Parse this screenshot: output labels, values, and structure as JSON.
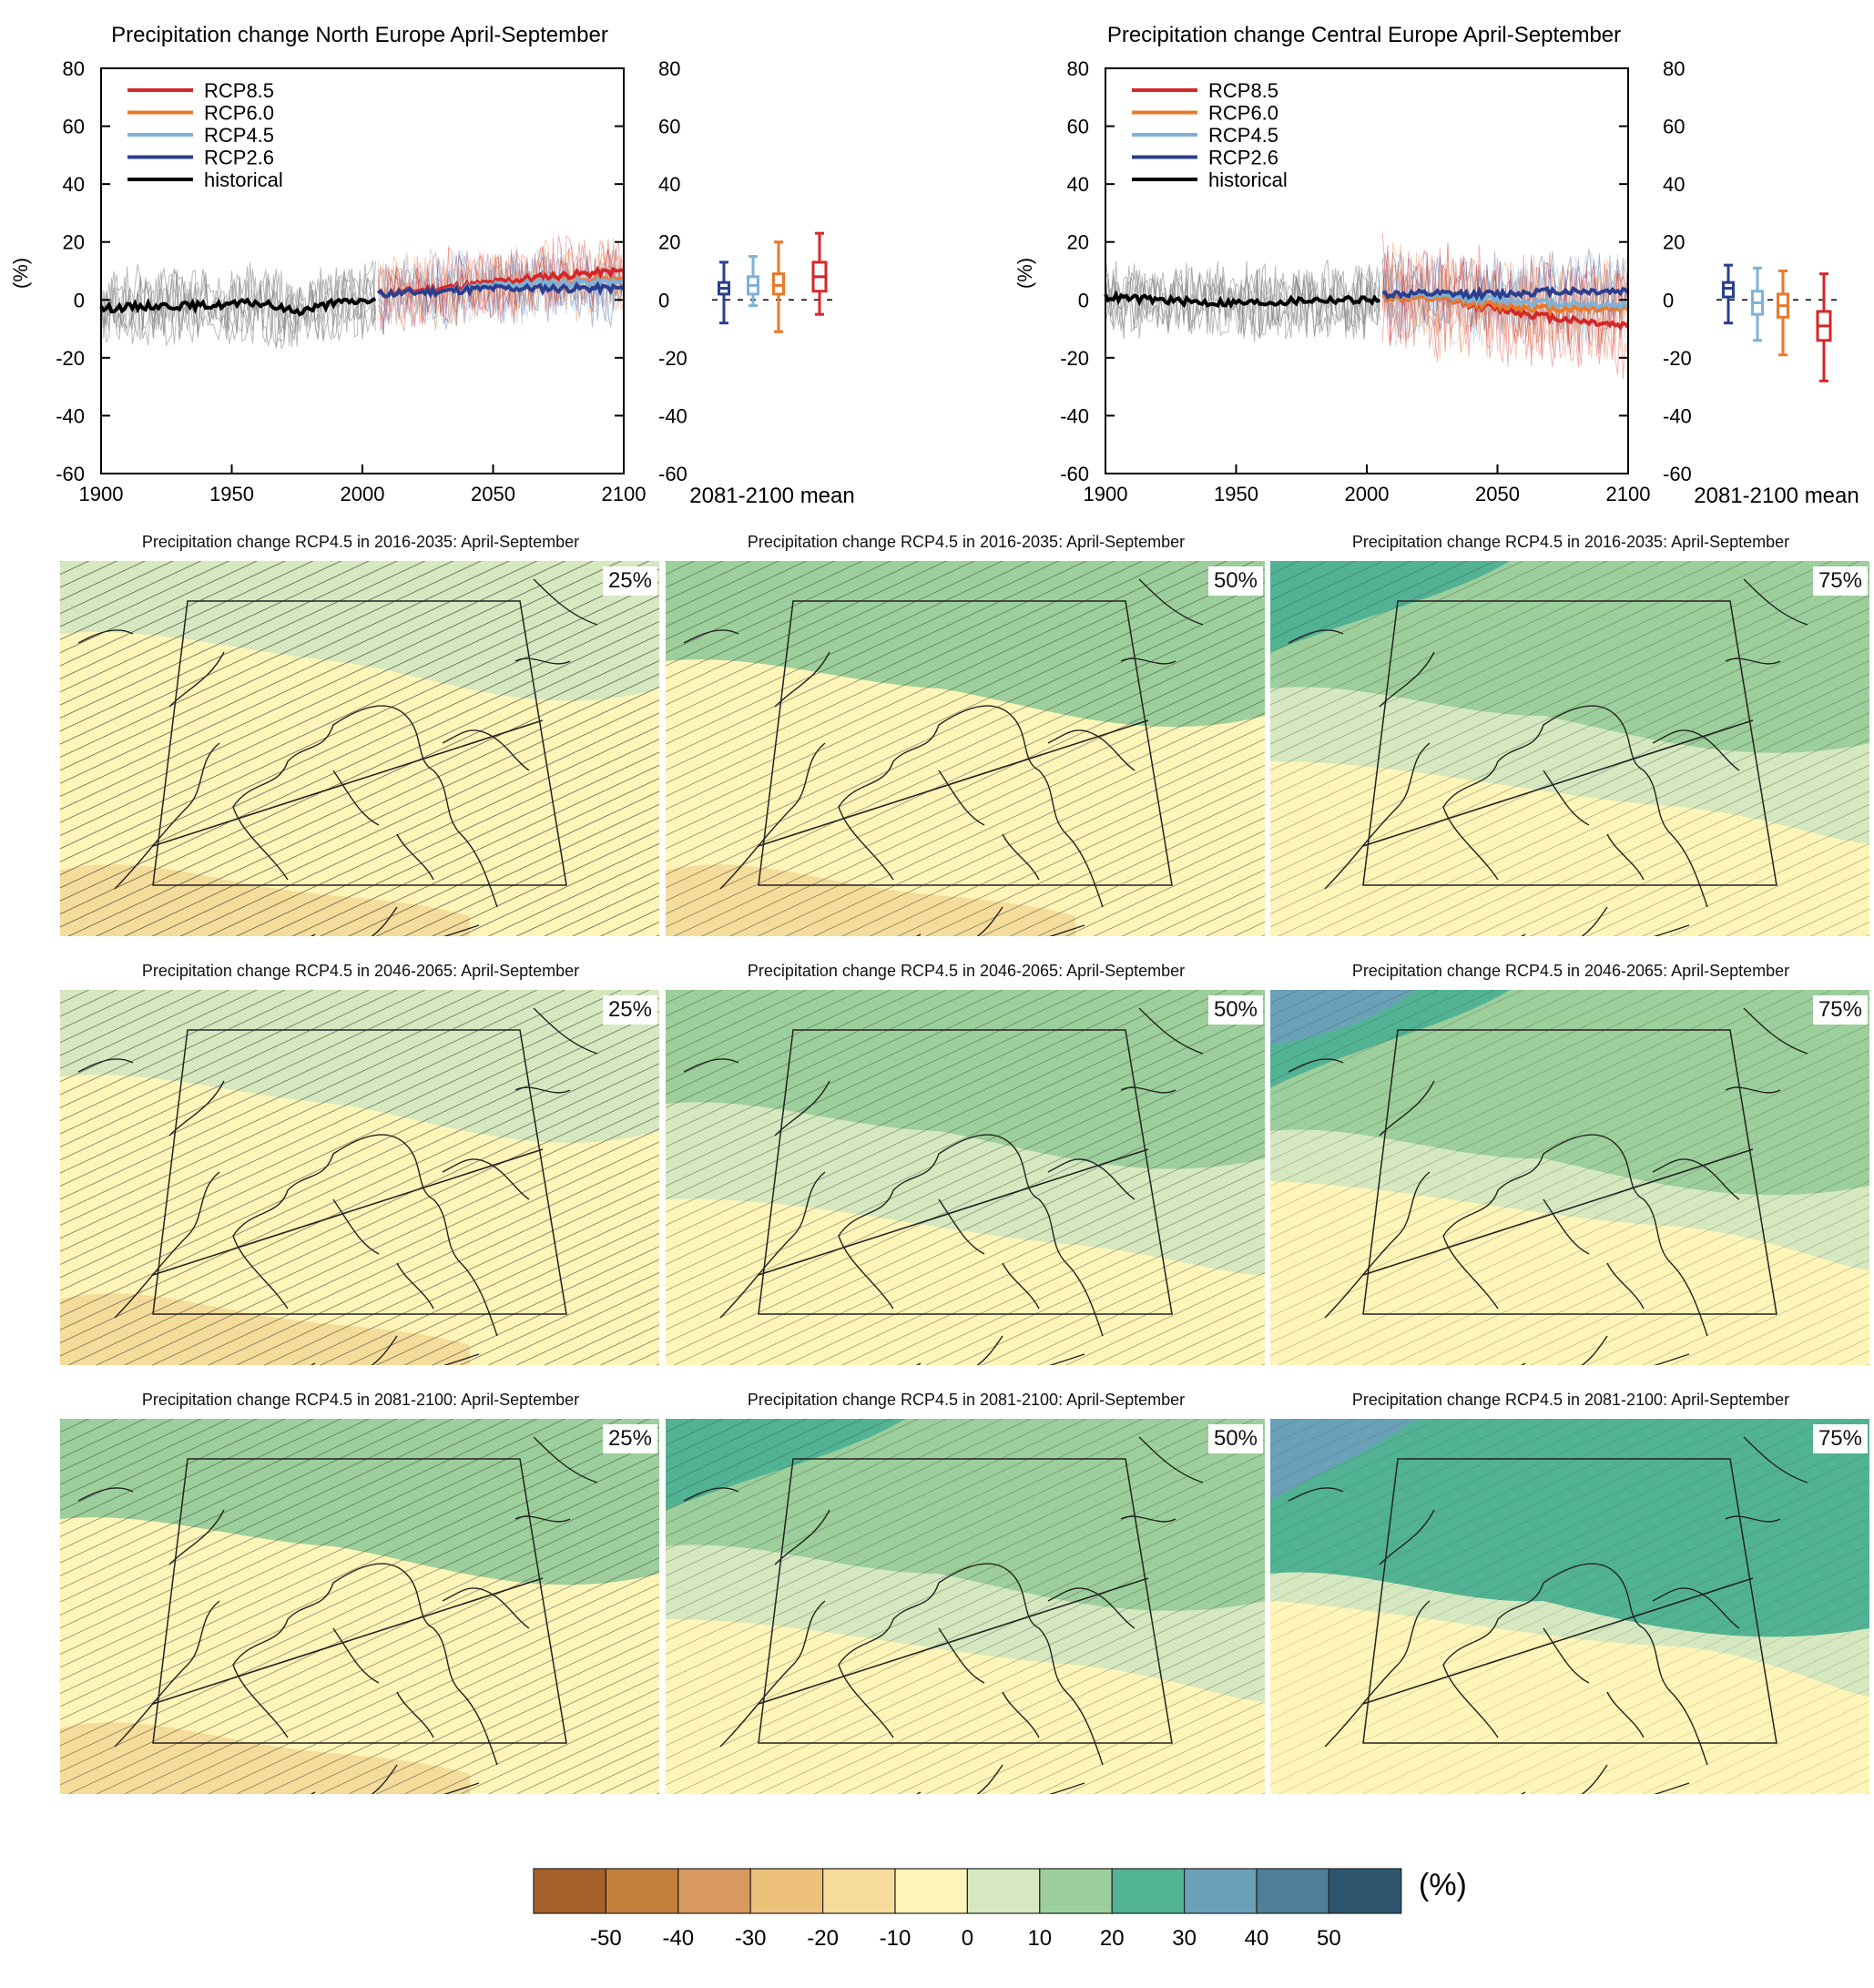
{
  "chart_data": [
    {
      "type": "line",
      "title": "Precipitation change North Europe April-September",
      "ylabel": "(%)",
      "xlim": [
        1900,
        2100
      ],
      "ylim": [
        -60,
        80
      ],
      "x_ticks": [
        "1900",
        "1950",
        "2000",
        "2050",
        "2100"
      ],
      "y_ticks": [
        "80",
        "60",
        "40",
        "20",
        "0",
        "-20",
        "-40",
        "-60"
      ],
      "legend": [
        "RCP8.5",
        "RCP6.0",
        "RCP4.5",
        "RCP2.6",
        "historical"
      ],
      "series": [
        {
          "name": "historical",
          "x": [
            1900,
            1920,
            1940,
            1960,
            1975,
            1990,
            2005
          ],
          "values": [
            -3,
            -2,
            -2,
            -1,
            -4,
            -1,
            0
          ]
        },
        {
          "name": "RCP2.6",
          "x": [
            2006,
            2030,
            2050,
            2070,
            2100
          ],
          "values": [
            2,
            3,
            4,
            4,
            4
          ]
        },
        {
          "name": "RCP4.5",
          "x": [
            2006,
            2030,
            2050,
            2070,
            2100
          ],
          "values": [
            2,
            3,
            5,
            6,
            6
          ]
        },
        {
          "name": "RCP6.0",
          "x": [
            2006,
            2030,
            2050,
            2070,
            2100
          ],
          "values": [
            2,
            3,
            5,
            6,
            7
          ]
        },
        {
          "name": "RCP8.5",
          "x": [
            2006,
            2030,
            2050,
            2070,
            2100
          ],
          "values": [
            2,
            4,
            6,
            8,
            10
          ]
        }
      ],
      "boxplot_label": "2081-2100 mean",
      "boxplots": [
        {
          "name": "RCP2.6",
          "min": -8,
          "q1": 2,
          "median": 4,
          "q3": 6,
          "max": 13
        },
        {
          "name": "RCP4.5",
          "min": -2,
          "q1": 2,
          "median": 5,
          "q3": 8,
          "max": 15
        },
        {
          "name": "RCP6.0",
          "min": -11,
          "q1": 2,
          "median": 5,
          "q3": 9,
          "max": 20
        },
        {
          "name": "RCP8.5",
          "min": -5,
          "q1": 3,
          "median": 8,
          "q3": 13,
          "max": 23
        }
      ]
    },
    {
      "type": "line",
      "title": "Precipitation change Central Europe April-September",
      "ylabel": "(%)",
      "xlim": [
        1900,
        2100
      ],
      "ylim": [
        -60,
        80
      ],
      "x_ticks": [
        "1900",
        "1950",
        "2000",
        "2050",
        "2100"
      ],
      "y_ticks": [
        "80",
        "60",
        "40",
        "20",
        "0",
        "-20",
        "-40",
        "-60"
      ],
      "legend": [
        "RCP8.5",
        "RCP6.0",
        "RCP4.5",
        "RCP2.6",
        "historical"
      ],
      "series": [
        {
          "name": "historical",
          "x": [
            1900,
            1920,
            1940,
            1960,
            1980,
            2005
          ],
          "values": [
            1,
            0,
            -1,
            -1,
            0,
            0
          ]
        },
        {
          "name": "RCP2.6",
          "x": [
            2006,
            2030,
            2050,
            2070,
            2100
          ],
          "values": [
            2,
            2,
            2,
            3,
            3
          ]
        },
        {
          "name": "RCP4.5",
          "x": [
            2006,
            2030,
            2050,
            2070,
            2100
          ],
          "values": [
            2,
            1,
            0,
            -1,
            -2
          ]
        },
        {
          "name": "RCP6.0",
          "x": [
            2006,
            2030,
            2050,
            2070,
            2100
          ],
          "values": [
            1,
            0,
            -2,
            -3,
            -3
          ]
        },
        {
          "name": "RCP8.5",
          "x": [
            2006,
            2030,
            2050,
            2070,
            2100
          ],
          "values": [
            1,
            0,
            -3,
            -6,
            -9
          ]
        }
      ],
      "boxplot_label": "2081-2100 mean",
      "boxplots": [
        {
          "name": "RCP2.6",
          "min": -8,
          "q1": 1,
          "median": 4,
          "q3": 6,
          "max": 12
        },
        {
          "name": "RCP4.5",
          "min": -14,
          "q1": -5,
          "median": -1,
          "q3": 3,
          "max": 11
        },
        {
          "name": "RCP6.0",
          "min": -19,
          "q1": -6,
          "median": -2,
          "q3": 2,
          "max": 10
        },
        {
          "name": "RCP8.5",
          "min": -28,
          "q1": -14,
          "median": -9,
          "q3": -4,
          "max": 9
        }
      ]
    },
    {
      "type": "heatmap",
      "colorbar": {
        "ticks": [
          "-50",
          "-40",
          "-30",
          "-20",
          "-10",
          "0",
          "10",
          "20",
          "30",
          "40",
          "50"
        ],
        "unit": "(%)",
        "colors": [
          "#a6612a",
          "#c57f3d",
          "#d89a5e",
          "#edc07a",
          "#f5dc9a",
          "#fff5b8",
          "#d5e8c0",
          "#9ccf9b",
          "#52b394",
          "#6ba1b8",
          "#4f7f97",
          "#2d566e"
        ]
      },
      "maps": [
        {
          "title": "Precipitation change RCP4.5 in 2016-2035: April-September",
          "percentile": "25%",
          "shift": 0
        },
        {
          "title": "Precipitation change RCP4.5 in 2016-2035: April-September",
          "percentile": "50%",
          "shift": 1
        },
        {
          "title": "Precipitation change RCP4.5 in 2016-2035: April-September",
          "percentile": "75%",
          "shift": 2
        },
        {
          "title": "Precipitation change RCP4.5 in 2046-2065: April-September",
          "percentile": "25%",
          "shift": 0.5
        },
        {
          "title": "Precipitation change RCP4.5 in 2046-2065: April-September",
          "percentile": "50%",
          "shift": 1.5
        },
        {
          "title": "Precipitation change RCP4.5 in 2046-2065: April-September",
          "percentile": "75%",
          "shift": 2.5
        },
        {
          "title": "Precipitation change RCP4.5 in 2081-2100: April-September",
          "percentile": "25%",
          "shift": 1
        },
        {
          "title": "Precipitation change RCP4.5 in 2081-2100: April-September",
          "percentile": "50%",
          "shift": 2
        },
        {
          "title": "Precipitation change RCP4.5 in 2081-2100: April-September",
          "percentile": "75%",
          "shift": 3
        }
      ]
    }
  ],
  "colors": {
    "RCP8.5": "#d62728",
    "RCP6.0": "#e8792b",
    "RCP4.5": "#7fb1d8",
    "RCP2.6": "#2a3f8f",
    "historical": "#000000",
    "spread_hist": "#808080"
  }
}
